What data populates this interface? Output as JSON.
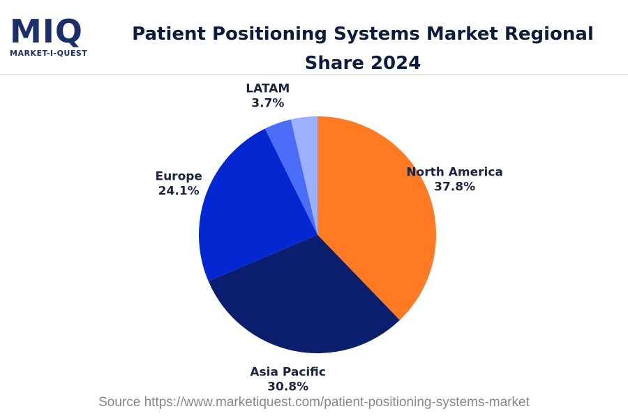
{
  "logo": {
    "mark": "MIQ",
    "name": "MARKET-I-QUEST"
  },
  "chart_data": {
    "type": "pie",
    "title": "Patient Positioning Systems Market Regional Share 2024",
    "categories": [
      "North America",
      "Asia Pacific",
      "Europe",
      "LATAM",
      null
    ],
    "values": [
      37.8,
      30.8,
      24.1,
      3.7,
      3.6
    ],
    "value_labels": [
      "37.8%",
      "30.8%",
      "24.1%",
      "3.7%",
      null
    ],
    "colors": [
      "#ff7a21",
      "#0b1e6e",
      "#0427d1",
      "#4a6cf7",
      "#9bb0ff"
    ],
    "source": "Source https://www.marketiquest.com/patient-positioning-systems-market"
  }
}
